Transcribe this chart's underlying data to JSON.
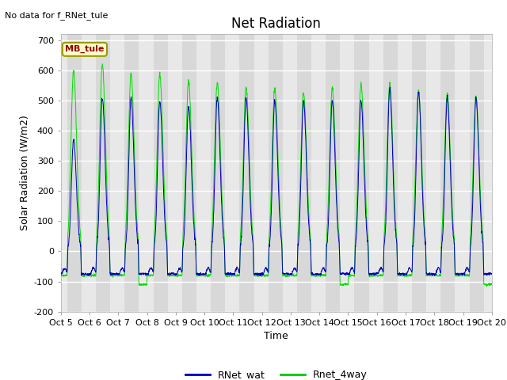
{
  "title": "Net Radiation",
  "no_data_text": "No data for f_RNet_tule",
  "xlabel": "Time",
  "ylabel": "Solar Radiation (W/m2)",
  "ylim": [
    -200,
    720
  ],
  "yticks": [
    -200,
    -100,
    0,
    100,
    200,
    300,
    400,
    500,
    600,
    700
  ],
  "xtick_labels": [
    "Oct 5",
    "Oct 6",
    "Oct 7",
    "Oct 8",
    "Oct 9",
    "Oct 10",
    "Oct 11",
    "Oct 12",
    "Oct 13",
    "Oct 14",
    "Oct 15",
    "Oct 16",
    "Oct 17",
    "Oct 18",
    "Oct 19",
    "Oct 20"
  ],
  "legend_entries": [
    "RNet_wat",
    "Rnet_4way"
  ],
  "legend_colors": [
    "#0000bb",
    "#00cc00"
  ],
  "line_color_blue": "#0000bb",
  "line_color_green": "#00dd00",
  "fig_bg_color": "#ffffff",
  "plot_bg_color": "#e8e8e8",
  "daytime_bg_color": "#d8d8d8",
  "mb_tule_label": "MB_tule",
  "mb_tule_color": "#990000",
  "mb_tule_bg": "#ffffcc",
  "mb_tule_edge": "#999900",
  "num_days": 15,
  "peak_blue": [
    370,
    510,
    510,
    500,
    480,
    510,
    510,
    500,
    500,
    500,
    500,
    540,
    530,
    510,
    510
  ],
  "peak_green": [
    600,
    620,
    590,
    585,
    560,
    560,
    545,
    540,
    525,
    540,
    555,
    555,
    535,
    525,
    515
  ],
  "night_level_blue": -75,
  "night_level_green": -80,
  "title_fontsize": 12,
  "label_fontsize": 9,
  "tick_fontsize": 8,
  "grid_color": "#ffffff",
  "grid_lw": 1.0
}
